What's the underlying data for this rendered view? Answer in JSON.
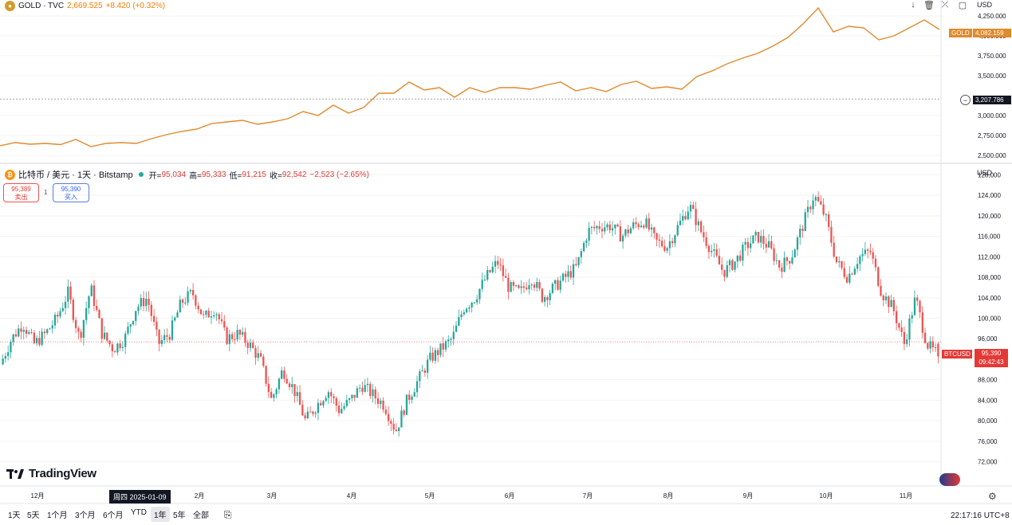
{
  "gold": {
    "symbol": "GOLD · TVC",
    "price": "2,669.525",
    "change": "+8.420 (+0.32%)",
    "last_tag": "4,082.159",
    "gold_label": "GOLD",
    "crosshair_tag": "3,207.786",
    "currency": "USD",
    "axis_ticks": [
      "4,250.000",
      "4,000.000",
      "3,750.000",
      "3,500.000",
      "3,000.000",
      "2,750.000",
      "2,500.000"
    ]
  },
  "btc": {
    "symbol": "比特币 / 美元 · 1天 · Bitstamp",
    "ohlc": {
      "open_label": "开=",
      "open": "95,034",
      "high_label": "高=",
      "high": "95,333",
      "low_label": "低=",
      "low": "91,215",
      "close_label": "收=",
      "close": "92,542",
      "change": "−2,523 (−2.65%)"
    },
    "sell_price": "95,389",
    "sell_label": "卖出",
    "spread": "1",
    "buy_price": "95,390",
    "buy_label": "买入",
    "currency": "USD",
    "tag_symbol": "BTCUSD",
    "tag_price": "95,390",
    "tag_countdown": "09:42:43",
    "axis_ticks": [
      "128,000",
      "124,000",
      "120,000",
      "116,000",
      "112,000",
      "108,000",
      "104,000",
      "100,000",
      "96,000",
      "92,000",
      "88,000",
      "84,000",
      "80,000",
      "76,000",
      "72,000"
    ]
  },
  "xaxis": {
    "labels": [
      "12月",
      "2月",
      "3月",
      "4月",
      "5月",
      "6月",
      "7月",
      "8月",
      "9月",
      "10月",
      "11月"
    ],
    "crosshair_date": "周四  2025-01-09"
  },
  "toolbar": {
    "timeframes": [
      "1天",
      "5天",
      "1个月",
      "3个月",
      "6个月",
      "YTD",
      "1年",
      "5年",
      "全部"
    ],
    "active": "1年",
    "clock": "22:17:16 UTC+8"
  },
  "brand": {
    "name": "TradingView"
  },
  "colors": {
    "gold_line": "#e08a2c",
    "up": "#26a69a",
    "down": "#ef5350",
    "tag_red": "#e53935"
  },
  "chart_data": [
    {
      "type": "line",
      "title": "GOLD · TVC",
      "series": [
        {
          "name": "GOLD",
          "values": [
            2620,
            2660,
            2640,
            2650,
            2635,
            2700,
            2610,
            2650,
            2660,
            2650,
            2710,
            2760,
            2800,
            2830,
            2900,
            2920,
            2940,
            2890,
            2920,
            2960,
            3050,
            3000,
            3130,
            3030,
            3100,
            3280,
            3280,
            3420,
            3320,
            3350,
            3230,
            3350,
            3290,
            3350,
            3350,
            3330,
            3380,
            3420,
            3310,
            3350,
            3300,
            3390,
            3430,
            3340,
            3360,
            3330,
            3490,
            3560,
            3650,
            3720,
            3780,
            3870,
            3980,
            4150,
            4350,
            4050,
            4120,
            4100,
            3950,
            4000,
            4100,
            4200,
            4080
          ]
        }
      ],
      "x_range": [
        "2024-11-27",
        "2025-11-21"
      ],
      "ylim": [
        2450,
        4350
      ],
      "y_ticks": [
        2500,
        2750,
        3000,
        3250,
        3500,
        3750,
        4000,
        4250
      ],
      "last_value": 4082.159,
      "crosshair_value": 3207.786
    },
    {
      "type": "candlestick",
      "title": "比特币 / 美元 · 1天 · Bitstamp",
      "x_range": [
        "2024-11-27",
        "2025-11-21"
      ],
      "ylim": [
        71000,
        129000
      ],
      "y_ticks": [
        72000,
        76000,
        80000,
        84000,
        88000,
        92000,
        96000,
        100000,
        104000,
        108000,
        112000,
        116000,
        120000,
        124000,
        128000
      ],
      "close_path": [
        91000,
        96000,
        99000,
        95000,
        97000,
        100000,
        105000,
        96000,
        106000,
        97000,
        94000,
        96000,
        102000,
        104000,
        95000,
        97000,
        103000,
        105000,
        100000,
        102000,
        96000,
        97000,
        95000,
        92000,
        84000,
        90000,
        86000,
        80000,
        83000,
        86000,
        82000,
        84000,
        87000,
        85000,
        83000,
        78000,
        84000,
        88000,
        92000,
        94000,
        96000,
        102000,
        104000,
        108000,
        111000,
        106000,
        105000,
        108000,
        104000,
        106000,
        108000,
        110000,
        117000,
        118000,
        118000,
        116000,
        118000,
        119000,
        115000,
        114000,
        118000,
        122000,
        117000,
        113000,
        109000,
        111000,
        114000,
        116000,
        114000,
        110000,
        112000,
        118000,
        124000,
        120000,
        111000,
        108000,
        112000,
        113000,
        105000,
        102000,
        95000,
        104000,
        95000,
        92542
      ],
      "last_open": 95034,
      "last_high": 95333,
      "last_low": 91215,
      "last_close": 92542,
      "last_price": 95390
    }
  ]
}
